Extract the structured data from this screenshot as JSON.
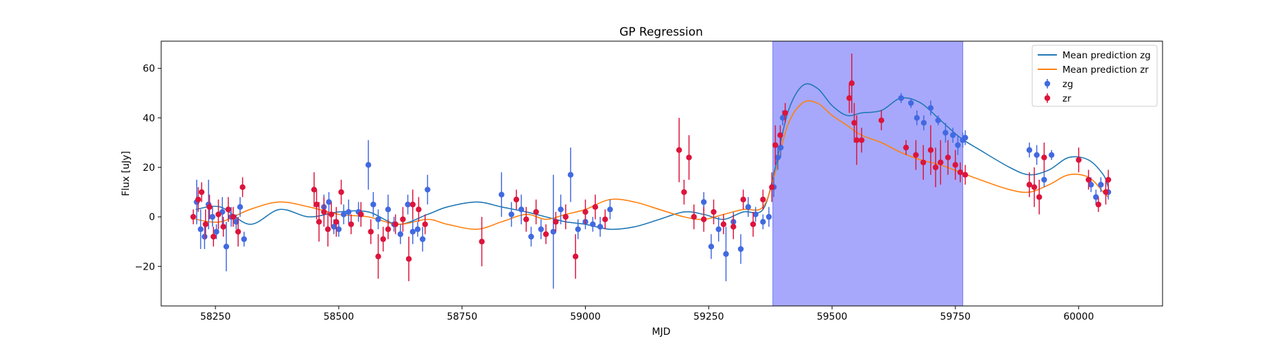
{
  "chart_data": {
    "type": "scatter",
    "title": "GP Regression",
    "xlabel": "MJD",
    "ylabel": "Flux [uJy]",
    "xlim": [
      58140,
      60170
    ],
    "ylim": [
      -36,
      71
    ],
    "xticks": [
      58250,
      58500,
      58750,
      59000,
      59250,
      59500,
      59750,
      60000
    ],
    "yticks": [
      -20,
      0,
      20,
      40,
      60
    ],
    "legend_position": "upper right",
    "grid": false,
    "colors": {
      "zg_points": "#4169e1",
      "zr_points": "#dc143c",
      "zg_line": "#1f77b4",
      "zr_line": "#ff7f0e",
      "shade": "#a7a8fb",
      "shade_edge": "#6f72f0"
    },
    "shaded_region": {
      "x0": 59380,
      "x1": 59765
    },
    "legend": [
      {
        "label": "Mean prediction zg",
        "kind": "line",
        "color": "#1f77b4"
      },
      {
        "label": "Mean prediction zr",
        "kind": "line",
        "color": "#ff7f0e"
      },
      {
        "label": "zg",
        "kind": "point",
        "color": "#4169e1"
      },
      {
        "label": "zr",
        "kind": "point",
        "color": "#dc143c"
      }
    ],
    "series_lines": [
      {
        "name": "Mean prediction zg",
        "color": "#1f77b4",
        "x": [
          58210,
          58260,
          58320,
          58380,
          58440,
          58500,
          58560,
          58620,
          58680,
          58720,
          58780,
          58830,
          58880,
          58920,
          58960,
          59000,
          59050,
          59100,
          59150,
          59200,
          59240,
          59280,
          59320,
          59360,
          59385,
          59410,
          59440,
          59470,
          59500,
          59530,
          59560,
          59600,
          59640,
          59680,
          59720,
          59760,
          59800,
          59860,
          59900,
          59940,
          59980,
          60020,
          60050,
          60060
        ],
        "y": [
          3,
          4,
          -3,
          3,
          0,
          2,
          2,
          -3,
          1,
          4,
          6,
          4,
          2,
          0,
          -2,
          -3,
          -5,
          -4,
          -1,
          2,
          1,
          -1,
          2,
          3,
          20,
          42,
          53,
          52,
          45,
          41,
          42,
          43,
          48,
          46,
          39,
          32,
          27,
          20,
          17,
          19,
          24,
          23,
          17,
          12
        ]
      },
      {
        "name": "Mean prediction zr",
        "color": "#ff7f0e",
        "x": [
          58210,
          58260,
          58320,
          58380,
          58440,
          58500,
          58560,
          58620,
          58680,
          58720,
          58780,
          58830,
          58880,
          58920,
          58960,
          59000,
          59050,
          59100,
          59150,
          59200,
          59240,
          59280,
          59320,
          59360,
          59385,
          59410,
          59440,
          59470,
          59500,
          59530,
          59560,
          59600,
          59640,
          59680,
          59720,
          59760,
          59800,
          59860,
          59900,
          59940,
          59980,
          60020,
          60050,
          60060
        ],
        "y": [
          -1,
          -2,
          3,
          6,
          4,
          1,
          0,
          -3,
          -1,
          -3,
          -5,
          -2,
          1,
          -1,
          1,
          3,
          7,
          6,
          3,
          0,
          -1,
          1,
          3,
          4,
          18,
          37,
          46,
          46,
          41,
          37,
          33,
          30,
          26,
          23,
          21,
          18,
          15,
          11,
          10,
          13,
          17,
          16,
          10,
          8
        ]
      }
    ],
    "series_points": [
      {
        "name": "zg",
        "color": "#4169e1",
        "x": [
          58212,
          58220,
          58228,
          58236,
          58244,
          58252,
          58264,
          58272,
          58282,
          58292,
          58300,
          58308,
          58470,
          58480,
          58490,
          58500,
          58510,
          58520,
          58540,
          58560,
          58570,
          58580,
          58600,
          58612,
          58625,
          58640,
          58650,
          58660,
          58670,
          58680,
          58830,
          58850,
          58870,
          58890,
          58910,
          58935,
          58950,
          58970,
          58985,
          59000,
          59015,
          59030,
          59050,
          59240,
          59255,
          59270,
          59285,
          59300,
          59315,
          59330,
          59345,
          59360,
          59372,
          59382,
          59390,
          59396,
          59400,
          59640,
          59660,
          59672,
          59686,
          59700,
          59715,
          59730,
          59745,
          59755,
          59765,
          59770,
          59900,
          59915,
          59930,
          59945,
          60025,
          60035,
          60045,
          60060
        ],
        "y": [
          6,
          -5,
          -8,
          5,
          0,
          -6,
          2,
          -12,
          0,
          -2,
          4,
          -9,
          4,
          6,
          -4,
          -5,
          1,
          2,
          2,
          21,
          5,
          -1,
          3,
          -3,
          -7,
          5,
          -6,
          -5,
          -9,
          11,
          9,
          1,
          3,
          -8,
          -5,
          -6,
          3,
          17,
          -5,
          -2,
          -3,
          -4,
          3,
          6,
          -12,
          -5,
          -15,
          -2,
          -13,
          4,
          1,
          -2,
          0,
          12,
          24,
          28,
          40,
          48,
          46,
          40,
          38,
          44,
          39,
          34,
          33,
          29,
          31,
          32,
          27,
          25,
          15,
          25,
          13,
          8,
          13,
          10
        ],
        "err": [
          9,
          8,
          5,
          10,
          4,
          3,
          6,
          10,
          4,
          3,
          4,
          3,
          5,
          4,
          3,
          3,
          4,
          5,
          4,
          10,
          5,
          4,
          6,
          3,
          4,
          4,
          5,
          3,
          5,
          6,
          9,
          5,
          6,
          4,
          4,
          23,
          6,
          11,
          4,
          3,
          3,
          4,
          4,
          4,
          5,
          5,
          11,
          4,
          6,
          4,
          3,
          3,
          4,
          4,
          5,
          4,
          3,
          2,
          2,
          3,
          3,
          3,
          2,
          4,
          3,
          4,
          3,
          3,
          3,
          4,
          3,
          2,
          3,
          3,
          3,
          3
        ]
      },
      {
        "name": "zr",
        "color": "#dc143c",
        "x": [
          58205,
          58215,
          58222,
          58230,
          58238,
          58246,
          58256,
          58266,
          58276,
          58286,
          58296,
          58305,
          58450,
          58455,
          58460,
          58470,
          58478,
          58485,
          58495,
          58505,
          58525,
          58545,
          58565,
          58580,
          58590,
          58600,
          58615,
          58630,
          58642,
          58650,
          58662,
          58675,
          58790,
          58860,
          58880,
          58900,
          58920,
          58940,
          58960,
          58980,
          59000,
          59020,
          59040,
          59190,
          59200,
          59210,
          59220,
          59240,
          59260,
          59280,
          59300,
          59320,
          59340,
          59360,
          59378,
          59385,
          59395,
          59405,
          59535,
          59540,
          59545,
          59550,
          59560,
          59600,
          59650,
          59670,
          59685,
          59700,
          59710,
          59720,
          59735,
          59750,
          59760,
          59770,
          59900,
          59910,
          59920,
          59930,
          60000,
          60020,
          60040,
          60055,
          60060
        ],
        "y": [
          0,
          7,
          10,
          -3,
          4,
          -8,
          1,
          -4,
          3,
          0,
          -6,
          12,
          11,
          5,
          -2,
          2,
          -5,
          1,
          -2,
          10,
          -3,
          1,
          -6,
          -16,
          -9,
          -5,
          -3,
          -1,
          -17,
          5,
          3,
          -3,
          -10,
          7,
          -1,
          2,
          -7,
          -2,
          0,
          -16,
          2,
          4,
          -1,
          27,
          10,
          24,
          0,
          -1,
          2,
          -3,
          -4,
          7,
          -3,
          7,
          12,
          29,
          33,
          42,
          48,
          54,
          38,
          31,
          31,
          39,
          28,
          25,
          22,
          27,
          20,
          22,
          24,
          21,
          18,
          17,
          13,
          12,
          8,
          24,
          23,
          15,
          5,
          10,
          15
        ],
        "err": [
          3,
          5,
          4,
          6,
          5,
          4,
          6,
          4,
          5,
          4,
          6,
          4,
          7,
          6,
          8,
          6,
          7,
          5,
          6,
          5,
          4,
          5,
          5,
          9,
          5,
          4,
          4,
          5,
          9,
          6,
          5,
          4,
          10,
          4,
          5,
          5,
          4,
          4,
          5,
          9,
          5,
          5,
          4,
          13,
          5,
          9,
          5,
          5,
          5,
          4,
          5,
          4,
          5,
          4,
          6,
          8,
          4,
          4,
          6,
          12,
          8,
          10,
          5,
          4,
          3,
          6,
          7,
          10,
          8,
          9,
          7,
          6,
          4,
          4,
          5,
          8,
          7,
          6,
          5,
          4,
          3,
          5,
          4
        ]
      }
    ]
  }
}
